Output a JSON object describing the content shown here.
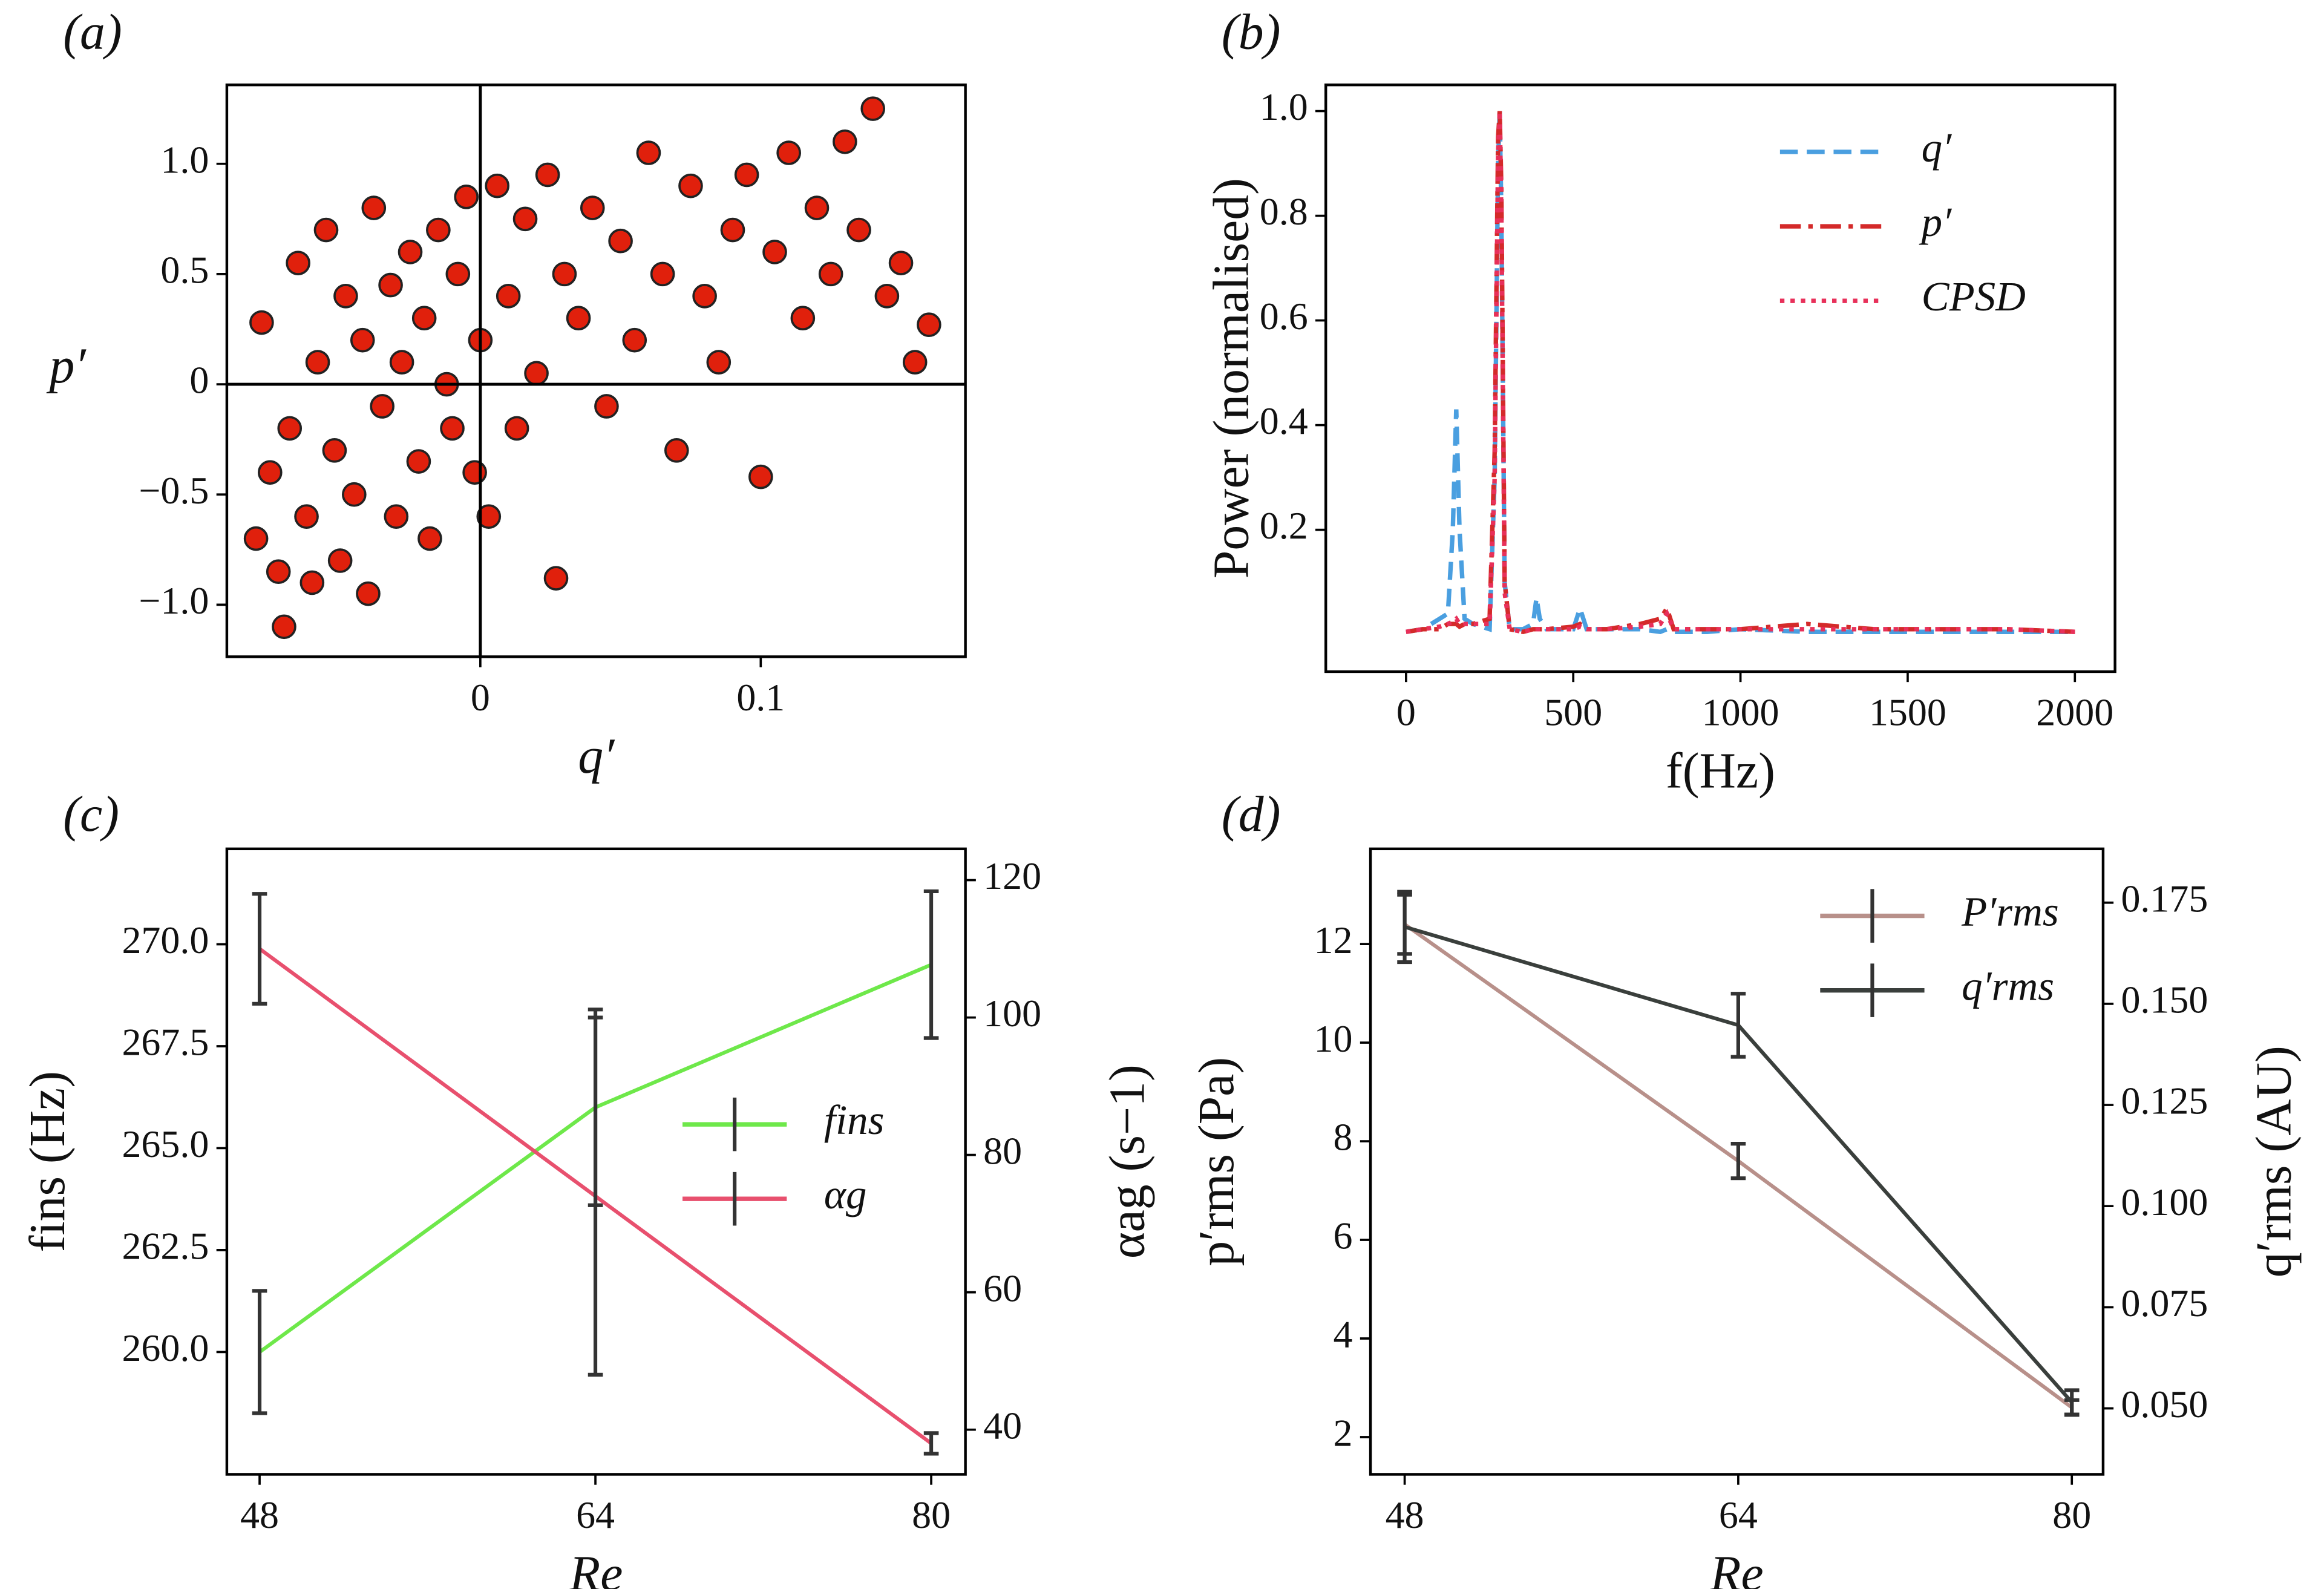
{
  "chart_data": [
    {
      "type": "scatter",
      "panel_label": "(a)",
      "xlabel": "q′",
      "ylabel": "p′",
      "xlim": [
        -0.0904,
        0.173
      ],
      "ylim": [
        -1.236,
        1.358
      ],
      "xticks": [
        0,
        0.1
      ],
      "yticks": [
        {
          "value": -1,
          "label": "−1.0"
        },
        {
          "value": -0.5,
          "label": "−0.5"
        },
        0,
        0.5,
        {
          "value": 1,
          "label": "1.0"
        }
      ],
      "hlines": [
        0
      ],
      "vlines": [
        0
      ],
      "color": "#e0200c",
      "x": [
        -0.08,
        -0.078,
        -0.075,
        -0.072,
        -0.07,
        -0.068,
        -0.065,
        -0.062,
        -0.06,
        -0.058,
        -0.055,
        -0.052,
        -0.05,
        -0.048,
        -0.045,
        -0.042,
        -0.04,
        -0.038,
        -0.035,
        -0.032,
        -0.03,
        -0.028,
        -0.025,
        -0.022,
        -0.02,
        -0.018,
        -0.015,
        -0.012,
        -0.01,
        -0.008,
        -0.005,
        -0.002,
        0,
        0.003,
        0.006,
        0.01,
        0.013,
        0.016,
        0.02,
        0.024,
        0.027,
        0.03,
        0.035,
        0.04,
        0.045,
        0.05,
        0.055,
        0.06,
        0.065,
        0.07,
        0.075,
        0.08,
        0.085,
        0.09,
        0.095,
        0.1,
        0.105,
        0.11,
        0.115,
        0.12,
        0.125,
        0.13,
        0.135,
        0.14,
        0.145,
        0.15,
        0.155,
        0.16
      ],
      "values": [
        -0.7,
        0.28,
        -0.4,
        -0.85,
        -1.1,
        -0.2,
        0.55,
        -0.6,
        -0.9,
        0.1,
        0.7,
        -0.3,
        -0.8,
        0.4,
        -0.5,
        0.2,
        -0.95,
        0.8,
        -0.1,
        0.45,
        -0.6,
        0.1,
        0.6,
        -0.35,
        0.3,
        -0.7,
        0.7,
        0,
        -0.2,
        0.5,
        0.85,
        -0.4,
        0.2,
        -0.6,
        0.9,
        0.4,
        -0.2,
        0.75,
        0.05,
        0.95,
        -0.88,
        0.5,
        0.3,
        0.8,
        -0.1,
        0.65,
        0.2,
        1.05,
        0.5,
        -0.3,
        0.9,
        0.4,
        0.1,
        0.7,
        0.95,
        -0.42,
        0.6,
        1.05,
        0.3,
        0.8,
        0.5,
        1.1,
        0.7,
        1.25,
        0.4,
        0.55,
        0.1,
        0.27
      ]
    },
    {
      "type": "line",
      "panel_label": "(b)",
      "xlabel": "f(Hz)",
      "ylabel": "Power (normalised)",
      "xlim": [
        -240,
        2120
      ],
      "ylim": [
        -0.071,
        1.05
      ],
      "xticks": [
        0,
        500,
        1000,
        1500,
        2000
      ],
      "yticks": [
        0.2,
        0.4,
        0.6,
        0.8,
        {
          "value": 1,
          "label": "1.0"
        }
      ],
      "legend": "upper right",
      "x": [
        0,
        50,
        100,
        125,
        140,
        150,
        160,
        175,
        200,
        250,
        265,
        275,
        280,
        285,
        295,
        310,
        350,
        380,
        390,
        400,
        420,
        500,
        520,
        540,
        600,
        700,
        760,
        780,
        800,
        900,
        1000,
        1200,
        1400,
        1600,
        1800,
        2000
      ],
      "series": [
        {
          "name": "q′",
          "color": "#4a9fe0",
          "linestyle": "dashed",
          "values": [
            0.005,
            0.01,
            0.03,
            0.04,
            0.2,
            0.43,
            0.2,
            0.03,
            0.02,
            0.01,
            0.3,
            0.9,
            1.0,
            0.8,
            0.1,
            0.01,
            0.01,
            0.02,
            0.07,
            0.03,
            0.01,
            0.01,
            0.05,
            0.01,
            0.01,
            0.01,
            0.005,
            0.01,
            0.005,
            0.005,
            0.01,
            0.005,
            0.005,
            0.005,
            0.005,
            0.005
          ]
        },
        {
          "name": "p′",
          "color": "#d42a2a",
          "linestyle": "dashdot",
          "values": [
            0.005,
            0.01,
            0.01,
            0.02,
            0.02,
            0.02,
            0.015,
            0.02,
            0.02,
            0.03,
            0.35,
            0.95,
            1,
            0.85,
            0.1,
            0.01,
            0.005,
            0.01,
            0.01,
            0.01,
            0.01,
            0.015,
            0.02,
            0.01,
            0.01,
            0.02,
            0.03,
            0.05,
            0.01,
            0.01,
            0.01,
            0.02,
            0.01,
            0.01,
            0.01,
            0.005
          ]
        },
        {
          "name": "CPSD",
          "color": "#e8305a",
          "linestyle": "dotted",
          "values": [
            0.005,
            0.01,
            0.015,
            0.02,
            0.025,
            0.03,
            0.02,
            0.02,
            0.02,
            0.02,
            0.3,
            0.92,
            1,
            0.8,
            0.08,
            0.01,
            0.005,
            0.01,
            0.01,
            0.01,
            0.01,
            0.01,
            0.015,
            0.01,
            0.01,
            0.015,
            0.02,
            0.04,
            0.01,
            0.01,
            0.01,
            0.01,
            0.01,
            0.01,
            0.01,
            0.005
          ]
        }
      ]
    },
    {
      "type": "errorline",
      "panel_label": "(c)",
      "xlabel": "Re",
      "ylabel": "fins (Hz)",
      "y2label": "αag (s−1)",
      "xlim": [
        46.44,
        81.63
      ],
      "ylim": [
        257.0,
        272.34
      ],
      "y2lim": [
        33.5,
        124.55
      ],
      "xticks": [
        48,
        64,
        80
      ],
      "yticks": [
        {
          "value": 260,
          "label": "260.0"
        },
        {
          "value": 262.5,
          "label": "262.5"
        },
        {
          "value": 265,
          "label": "265.0"
        },
        {
          "value": 267.5,
          "label": "267.5"
        },
        {
          "value": 270,
          "label": "270.0"
        }
      ],
      "y2ticks": [
        40,
        60,
        80,
        100,
        120
      ],
      "legend": "center right",
      "errorcolor": "#333333",
      "x": [
        48,
        64,
        80
      ],
      "series": [
        {
          "name": "fins",
          "color": "#6ee84a",
          "values": [
            260,
            266,
            269.5
          ],
          "errors": [
            1.5,
            2.4,
            1.8
          ]
        },
        {
          "name": "αg",
          "color": "#e8506e",
          "axis": "y2",
          "values": [
            110,
            74,
            38
          ],
          "errors": [
            8,
            26,
            1.5
          ]
        }
      ]
    },
    {
      "type": "errorline",
      "panel_label": "(d)",
      "xlabel": "Re",
      "ylabel": "p′rms (Pa)",
      "y2label": "q′rms (AU)",
      "xlim": [
        46.36,
        81.5
      ],
      "ylim": [
        1.245,
        13.93
      ],
      "y2lim": [
        0.0337,
        0.1883
      ],
      "xticks": [
        48,
        64,
        80
      ],
      "yticks": [
        2,
        4,
        6,
        8,
        10,
        12
      ],
      "y2ticks": [
        {
          "value": 0.05,
          "label": "0.050"
        },
        {
          "value": 0.075,
          "label": "0.075"
        },
        {
          "value": 0.1,
          "label": "0.100"
        },
        {
          "value": 0.125,
          "label": "0.125"
        },
        {
          "value": 0.15,
          "label": "0.150"
        },
        {
          "value": 0.175,
          "label": "0.175"
        }
      ],
      "legend": "upper right",
      "errorcolor": "#333333",
      "x": [
        48,
        64,
        80
      ],
      "series": [
        {
          "name": "P′rms",
          "color": "#b8908a",
          "values": [
            12.4,
            7.6,
            2.6
          ],
          "errors": [
            0.6,
            0.35,
            0.15
          ]
        },
        {
          "name": "q′rms",
          "color": "#3a3f3c",
          "axis": "y2",
          "values": [
            0.169,
            0.1447,
            0.0515
          ],
          "errors": [
            0.0087,
            0.0078,
            0.003
          ]
        }
      ]
    }
  ]
}
